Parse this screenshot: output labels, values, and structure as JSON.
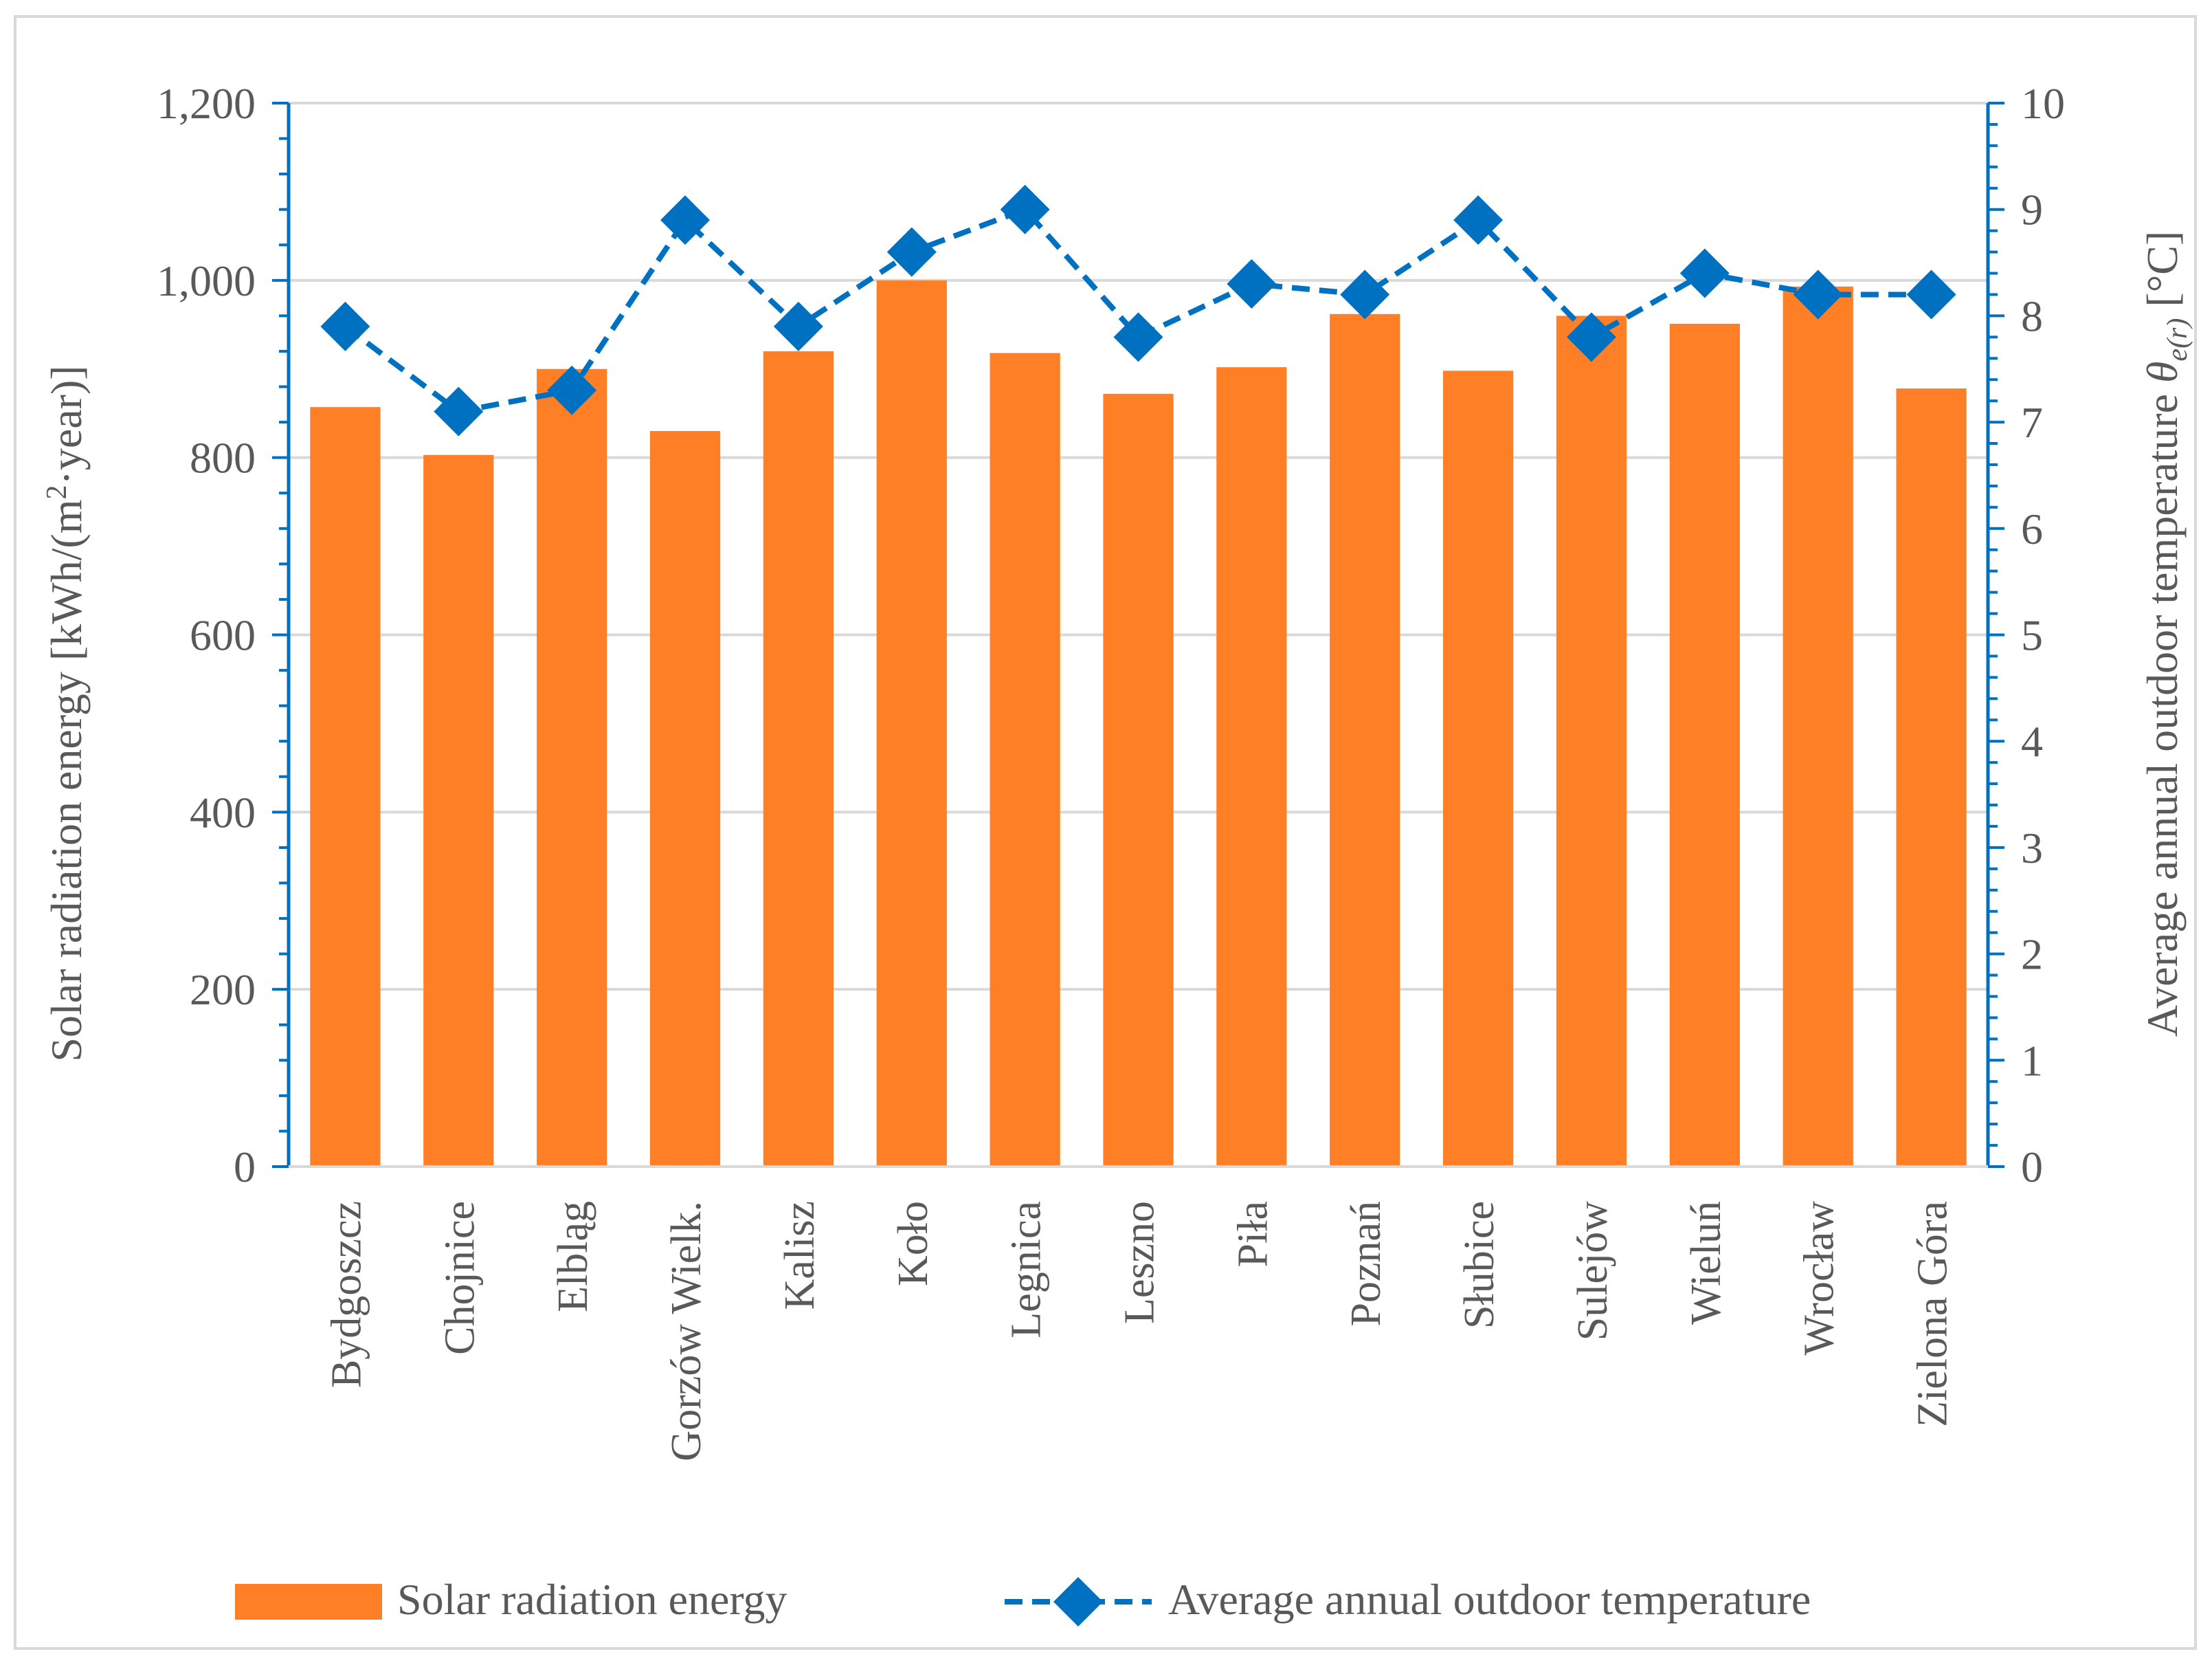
{
  "chart_data": {
    "type": "bar",
    "categories": [
      "Bydgoszcz",
      "Chojnice",
      "Elbląg",
      "Gorzów Wielk.",
      "Kalisz",
      "Koło",
      "Legnica",
      "Leszno",
      "Piła",
      "Poznań",
      "Słubice",
      "Sulejów",
      "Wieluń",
      "Wrocław",
      "Zielona Góra"
    ],
    "series": [
      {
        "name": "Solar radiation energy",
        "type": "bar",
        "axis": "left",
        "color": "#FF7F27",
        "values": [
          857,
          803,
          900,
          830,
          920,
          1000,
          918,
          872,
          902,
          962,
          898,
          960,
          951,
          993,
          878
        ]
      },
      {
        "name": "Average annual outdoor temperature",
        "type": "line",
        "axis": "right",
        "line_style": "dashed",
        "marker": "diamond",
        "color": "#0070C0",
        "values": [
          7.9,
          7.1,
          7.3,
          8.9,
          7.9,
          8.6,
          9.0,
          7.8,
          8.3,
          8.2,
          8.9,
          7.8,
          8.4,
          8.2,
          8.2
        ]
      }
    ],
    "y_left": {
      "label_main": "Solar radiation energy [kWh/(m",
      "label_sup": "2",
      "label_tail": "·year)]",
      "ylim": [
        0,
        1200
      ],
      "ticks": [
        "0",
        "200",
        "400",
        "600",
        "800",
        "1,000",
        "1,200"
      ]
    },
    "y_right": {
      "label_main": "Average annual outdoor temperature ",
      "label_theta": "θ",
      "label_sub": "e(r)",
      "label_unit": " [°C]",
      "ylim": [
        0,
        10
      ],
      "ticks": [
        "0",
        "1",
        "2",
        "3",
        "4",
        "5",
        "6",
        "7",
        "8",
        "9",
        "10"
      ]
    },
    "grid": true,
    "legend": {
      "placement": "bottom",
      "entries": [
        "Solar radiation energy",
        "Average annual outdoor temperature"
      ]
    }
  }
}
